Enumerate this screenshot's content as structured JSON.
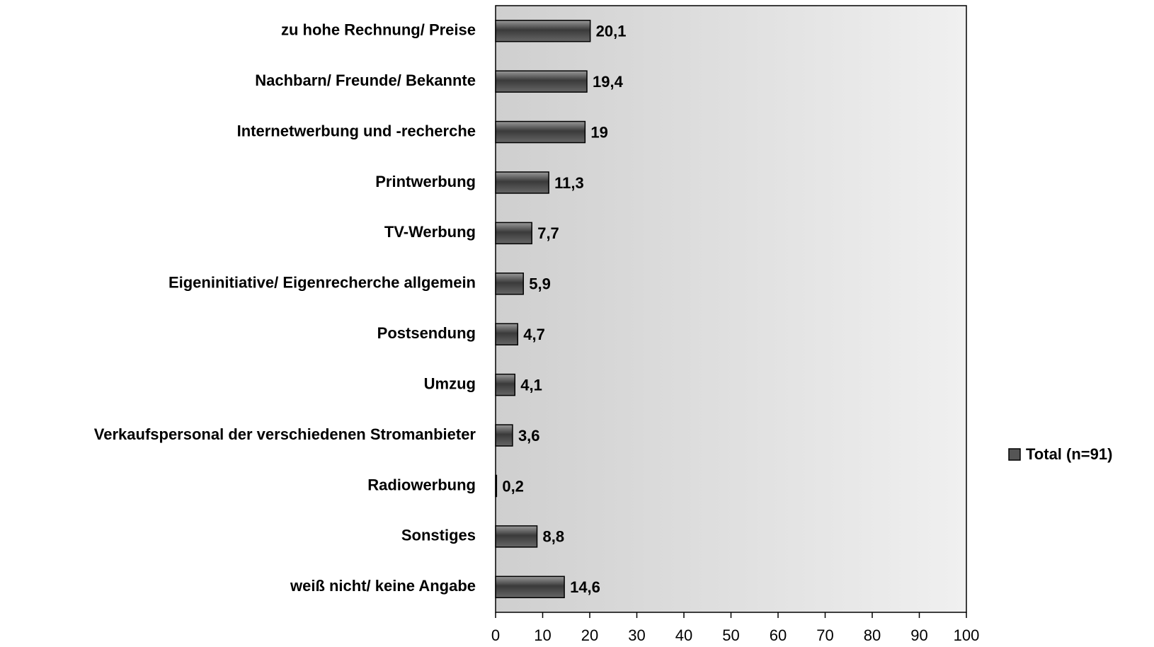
{
  "chart_data": {
    "type": "hbar",
    "categories": [
      "zu hohe Rechnung/ Preise",
      "Nachbarn/ Freunde/ Bekannte",
      "Internetwerbung und -recherche",
      "Printwerbung",
      "TV-Werbung",
      "Eigeninitiative/ Eigenrecherche allgemein",
      "Postsendung",
      "Umzug",
      "Verkaufspersonal der verschiedenen Stromanbieter",
      "Radiowerbung",
      "Sonstiges",
      "weiß nicht/ keine Angabe"
    ],
    "series": [
      {
        "name": "Total (n=91)",
        "color": "#555555",
        "values": [
          20.1,
          19.4,
          19,
          11.3,
          7.7,
          5.9,
          4.7,
          4.1,
          3.6,
          0.2,
          8.8,
          14.6
        ],
        "value_labels": [
          "20,1",
          "19,4",
          "19",
          "11,3",
          "7,7",
          "5,9",
          "4,7",
          "4,1",
          "3,6",
          "0,2",
          "8,8",
          "14,6"
        ]
      }
    ],
    "xlim": [
      0,
      100
    ],
    "xticks": [
      0,
      10,
      20,
      30,
      40,
      50,
      60,
      70,
      80,
      90,
      100
    ],
    "legend": "right"
  }
}
